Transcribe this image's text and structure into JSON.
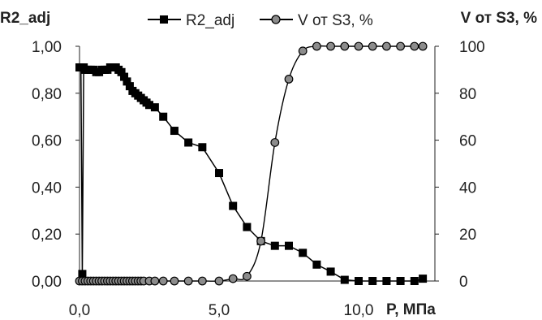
{
  "chart_data": {
    "type": "line",
    "ylabel_left": "R2_adj",
    "ylabel_right": "V от S3, %",
    "xlabel": "P, МПа",
    "xlim": [
      0,
      12.5
    ],
    "ylim_left": [
      0,
      1
    ],
    "ylim_right": [
      0,
      100
    ],
    "x_ticks": [
      "0,0",
      "5,0",
      "10,0"
    ],
    "y_left_ticks": [
      "0,00",
      "0,20",
      "0,40",
      "0,60",
      "0,80",
      "1,00"
    ],
    "y_right_ticks": [
      "0",
      "20",
      "40",
      "60",
      "80",
      "100"
    ],
    "grid": false,
    "legend_position": "top",
    "series": [
      {
        "name": "R2_adj",
        "axis": "left",
        "marker": "square",
        "color": "#000000",
        "x": [
          0.0,
          0.05,
          0.1,
          0.15,
          0.2,
          0.3,
          0.4,
          0.5,
          0.6,
          0.7,
          0.8,
          0.9,
          1.0,
          1.1,
          1.2,
          1.3,
          1.4,
          1.5,
          1.6,
          1.7,
          1.8,
          1.9,
          2.0,
          2.1,
          2.2,
          2.3,
          2.4,
          2.5,
          2.7,
          3.0,
          3.4,
          3.9,
          4.4,
          5.0,
          5.5,
          6.0,
          6.5,
          7.0,
          7.5,
          8.0,
          8.5,
          9.0,
          9.5,
          10.0,
          10.5,
          11.0,
          11.5,
          12.0,
          12.3
        ],
        "y": [
          0.91,
          0.91,
          0.03,
          0.91,
          0.9,
          0.9,
          0.9,
          0.9,
          0.89,
          0.89,
          0.9,
          0.9,
          0.9,
          0.91,
          0.91,
          0.91,
          0.9,
          0.89,
          0.87,
          0.85,
          0.83,
          0.81,
          0.8,
          0.79,
          0.78,
          0.77,
          0.76,
          0.75,
          0.74,
          0.7,
          0.64,
          0.59,
          0.57,
          0.46,
          0.32,
          0.23,
          0.17,
          0.15,
          0.15,
          0.12,
          0.07,
          0.04,
          0.005,
          0.0,
          0.0,
          0.0,
          0.0,
          0.0,
          0.01
        ]
      },
      {
        "name": "V от S3, %",
        "axis": "right",
        "marker": "circle",
        "color": "#555555",
        "x": [
          0.0,
          0.1,
          0.2,
          0.3,
          0.4,
          0.5,
          0.6,
          0.7,
          0.8,
          0.9,
          1.0,
          1.1,
          1.2,
          1.3,
          1.4,
          1.5,
          1.6,
          1.7,
          1.8,
          1.9,
          2.0,
          2.1,
          2.2,
          2.3,
          2.5,
          2.7,
          3.0,
          3.4,
          3.9,
          4.4,
          5.0,
          5.5,
          6.0,
          6.5,
          7.0,
          7.5,
          8.0,
          8.5,
          9.0,
          9.5,
          10.0,
          10.5,
          11.0,
          11.5,
          12.0,
          12.3
        ],
        "y": [
          0,
          0,
          0,
          0,
          0,
          0,
          0,
          0,
          0,
          0,
          0,
          0,
          0,
          0,
          0,
          0,
          0,
          0,
          0,
          0,
          0,
          0,
          0,
          0,
          0,
          0,
          0,
          0,
          0,
          0,
          0,
          1,
          2,
          17,
          59,
          86,
          98,
          100,
          100,
          100,
          100,
          100,
          100,
          100,
          100,
          100
        ]
      }
    ]
  }
}
